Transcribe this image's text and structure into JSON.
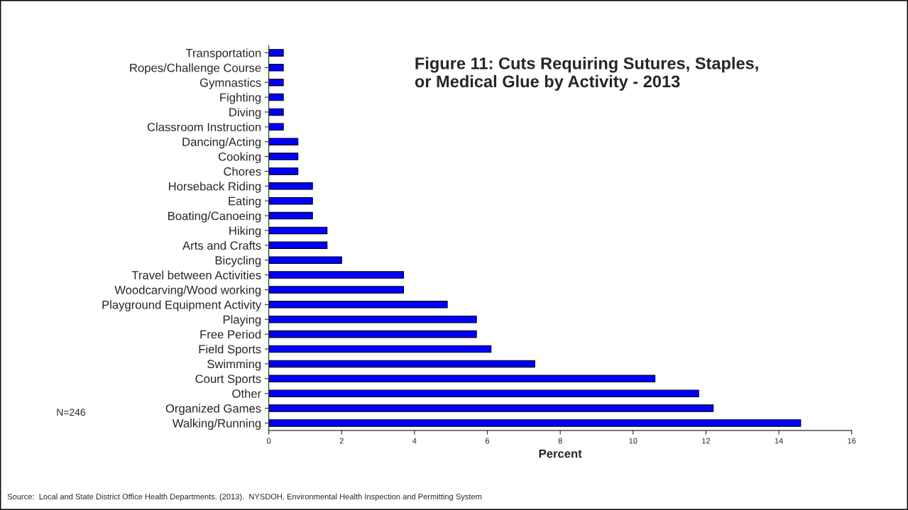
{
  "chart_data": {
    "type": "bar",
    "orientation": "horizontal",
    "title": "Figure 11: Cuts Requiring Sutures, Staples,\nor Medical Glue by Activity - 2013",
    "xlabel": "Percent",
    "categories": [
      "Transportation",
      "Ropes/Challenge Course",
      "Gymnastics",
      "Fighting",
      "Diving",
      "Classroom Instruction",
      "Dancing/Acting",
      "Cooking",
      "Chores",
      "Horseback Riding",
      "Eating",
      "Boating/Canoeing",
      "Hiking",
      "Arts and Crafts",
      "Bicycling",
      "Travel between Activities",
      "Woodcarving/Wood working",
      "Playground Equipment Activity",
      "Playing",
      "Free Period",
      "Field Sports",
      "Swimming",
      "Court Sports",
      "Other",
      "Organized Games",
      "Walking/Running"
    ],
    "values": [
      0.4,
      0.4,
      0.4,
      0.4,
      0.4,
      0.4,
      0.8,
      0.8,
      0.8,
      1.2,
      1.2,
      1.2,
      1.6,
      1.6,
      2.0,
      3.7,
      3.7,
      4.9,
      5.7,
      5.7,
      6.1,
      7.3,
      10.6,
      11.8,
      12.2,
      14.6
    ],
    "color": "#0000ff",
    "xlim": [
      0,
      16
    ],
    "xticks": [
      0,
      2,
      4,
      6,
      8,
      10,
      12,
      14,
      16
    ],
    "grid": false,
    "legend": false,
    "annotations": [
      "N=246",
      "Source:  Local and State District Office Health Departments. (2013).  NYSDOH, Environmental Health Inspection and Permitting System"
    ]
  }
}
